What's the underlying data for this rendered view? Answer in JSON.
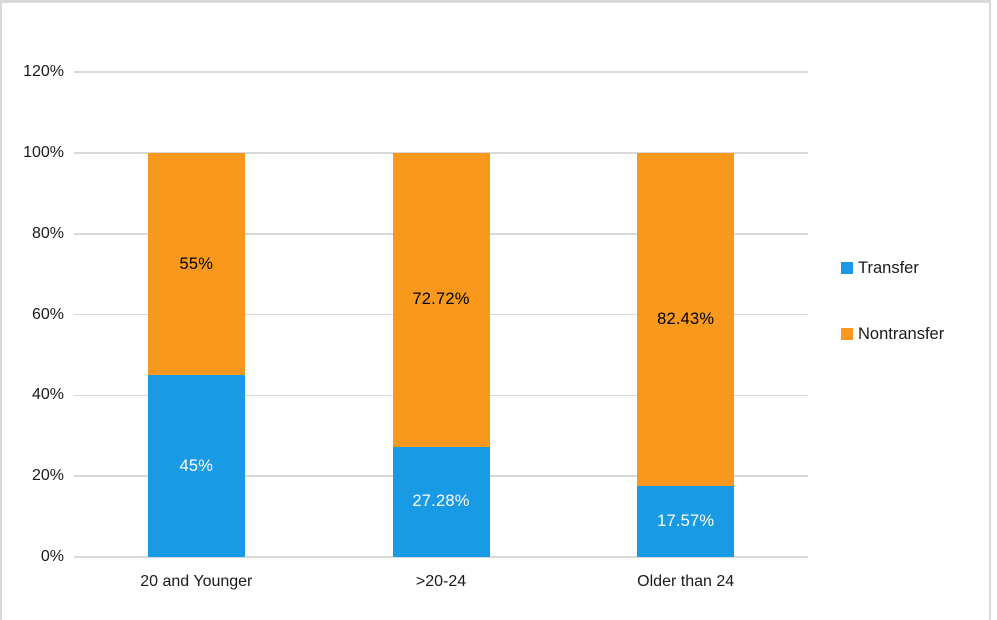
{
  "chart": {
    "background_color": "#ffffff",
    "frame_border_color": "#d9d9d9",
    "gridline_color": "#d9d9d9",
    "axis_text_color": "#1a1a1a"
  },
  "chart_data": {
    "type": "bar",
    "subtype": "stacked-column-100",
    "title": "",
    "categories": [
      "20 and Younger",
      ">20-24",
      "Older than 24"
    ],
    "series": [
      {
        "name": "Transfer",
        "color": "#189ae5",
        "values": [
          45,
          27.28,
          17.57
        ],
        "data_labels": [
          "45%",
          "27.28%",
          "17.57%"
        ],
        "data_label_color": "#ffffff"
      },
      {
        "name": "Nontransfer",
        "color": "#f8981d",
        "values": [
          55,
          72.72,
          82.43
        ],
        "data_labels": [
          "55%",
          "72.72%",
          "82.43%"
        ],
        "data_label_color": "#000000"
      }
    ],
    "y_axis": {
      "tick_labels": [
        "0%",
        "20%",
        "40%",
        "60%",
        "80%",
        "100%",
        "120%"
      ],
      "min": 0,
      "max": 120,
      "step": 20,
      "gridlines": true
    },
    "legend": {
      "position": "right"
    }
  }
}
